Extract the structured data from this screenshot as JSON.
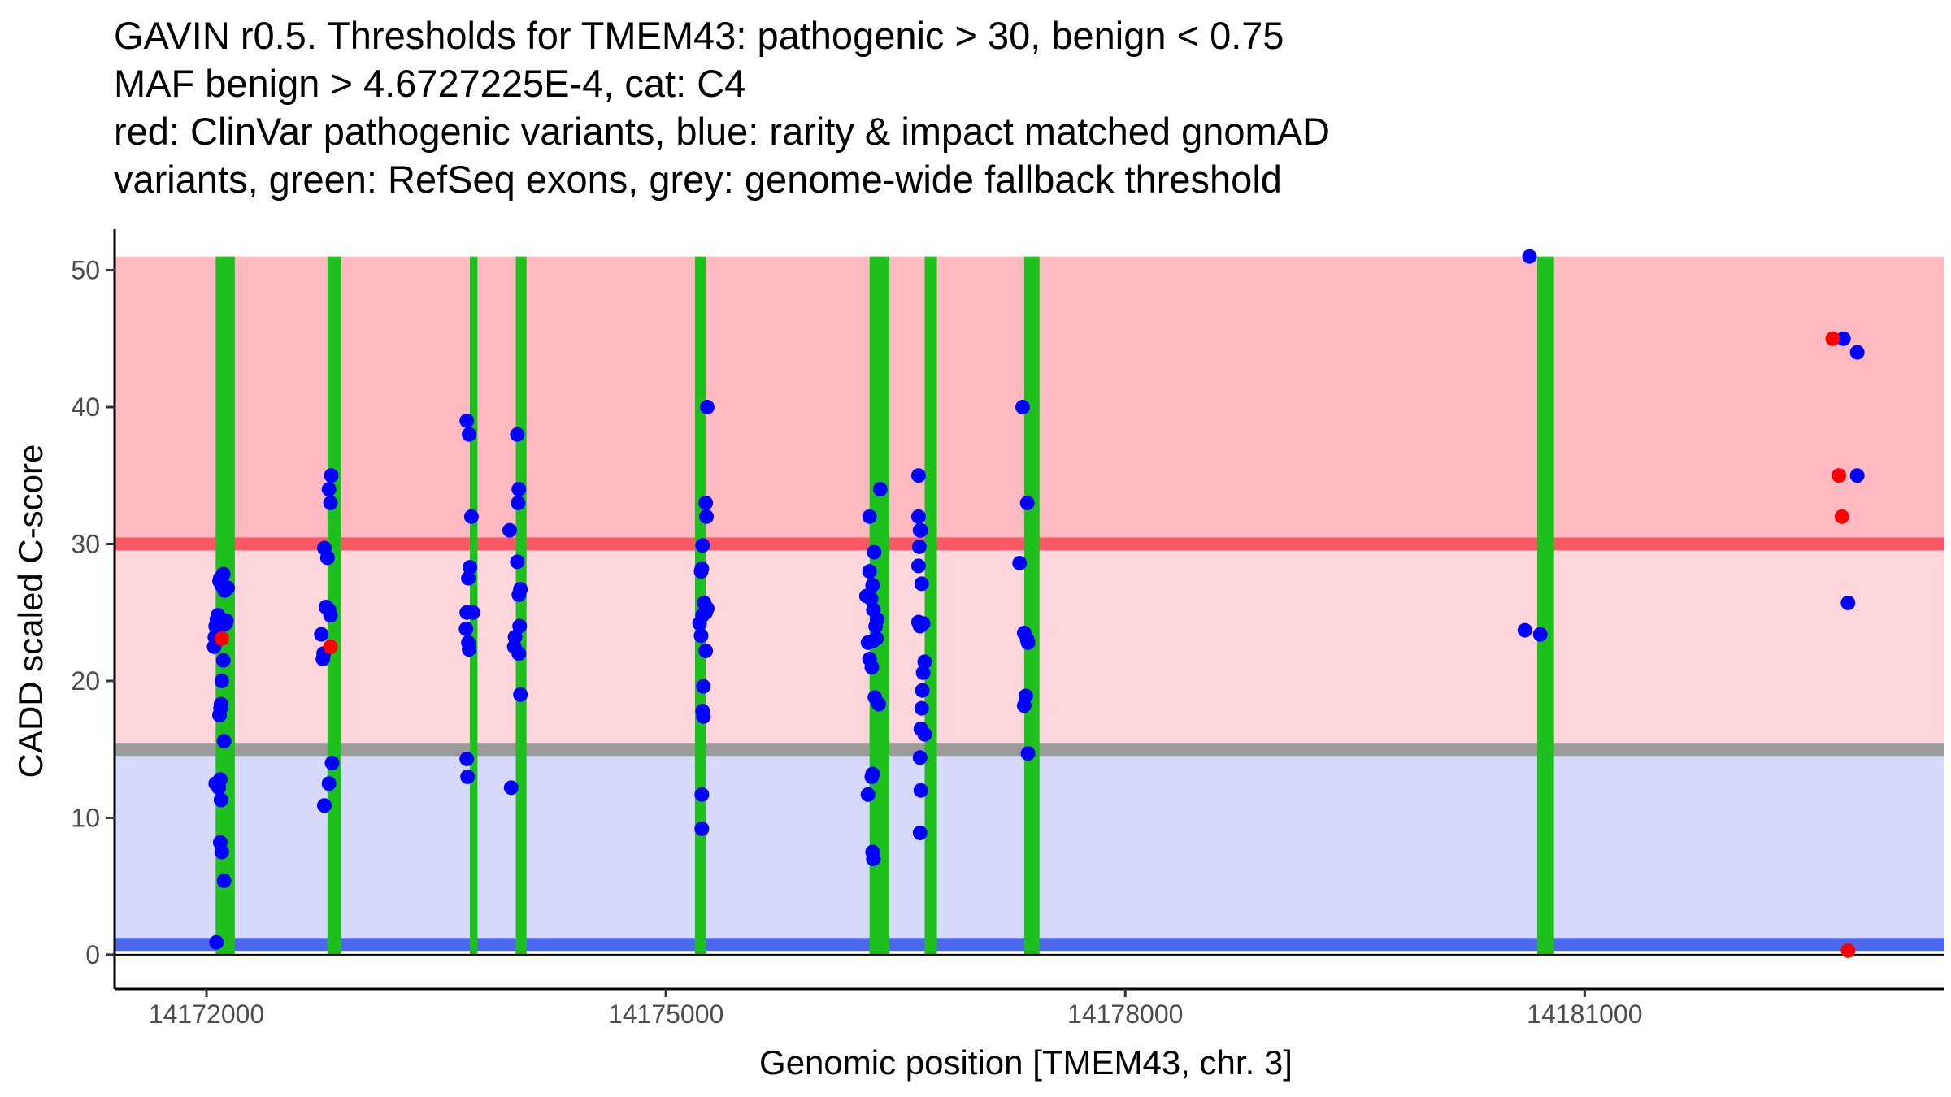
{
  "chart_data": {
    "type": "scatter",
    "title_lines": [
      "GAVIN r0.5. Thresholds for TMEM43: pathogenic > 30, benign < 0.75",
      "MAF benign > 4.6727225E-4, cat: C4",
      "red: ClinVar pathogenic variants, blue: rarity & impact matched gnomAD",
      "variants, green: RefSeq exons, grey: genome-wide fallback threshold"
    ],
    "xlabel": "Genomic position [TMEM43, chr. 3]",
    "ylabel": "CADD scaled C-score",
    "xlim": [
      14171400,
      14183350
    ],
    "ylim": [
      -2.5,
      53
    ],
    "x_ticks": [
      14172000,
      14175000,
      14178000,
      14181000
    ],
    "x_tick_labels": [
      "14172000",
      "14175000",
      "14178000",
      "14181000"
    ],
    "y_ticks": [
      0,
      10,
      20,
      30,
      40,
      50
    ],
    "y_tick_labels": [
      "0",
      "10",
      "20",
      "30",
      "40",
      "50"
    ],
    "colors": {
      "pathogenic_band": "#fdbbc1",
      "mid_band": "#fed6dc",
      "benign_band": "#d7d9fb",
      "pathogenic_threshold": "#fe5766",
      "fallback_threshold": "#9b9b9b",
      "benign_threshold": "#4c68ee",
      "exon": "#1ec01e",
      "clinvar_point": "#fe0000",
      "gnomad_point": "#0000fe"
    },
    "bands": [
      {
        "name": "pathogenic",
        "y0": 30,
        "y1": 51
      },
      {
        "name": "uncertain",
        "y0": 15,
        "y1": 30
      },
      {
        "name": "benign",
        "y0": 0.75,
        "y1": 15
      }
    ],
    "thresholds": {
      "pathogenic": 30,
      "fallback": 15,
      "benign": 0.75
    },
    "exons": [
      {
        "start": 14172060,
        "end": 14172185
      },
      {
        "start": 14172790,
        "end": 14172880
      },
      {
        "start": 14173720,
        "end": 14173770
      },
      {
        "start": 14174020,
        "end": 14174090
      },
      {
        "start": 14175190,
        "end": 14175260
      },
      {
        "start": 14176330,
        "end": 14176460
      },
      {
        "start": 14176690,
        "end": 14176770
      },
      {
        "start": 14177340,
        "end": 14177440
      },
      {
        "start": 14180690,
        "end": 14180800
      }
    ],
    "series": [
      {
        "name": "gnomAD",
        "points": [
          [
            14172050,
            22.5
          ],
          [
            14172055,
            23.2
          ],
          [
            14172060,
            24.0
          ],
          [
            14172068,
            24.5
          ],
          [
            14172075,
            24.8
          ],
          [
            14172080,
            23.8
          ],
          [
            14172085,
            27.3
          ],
          [
            14172090,
            27.5
          ],
          [
            14172098,
            27.0
          ],
          [
            14172110,
            27.8
          ],
          [
            14172118,
            26.6
          ],
          [
            14172125,
            24.2
          ],
          [
            14172130,
            24.4
          ],
          [
            14172138,
            26.8
          ],
          [
            14172110,
            21.5
          ],
          [
            14172100,
            20.0
          ],
          [
            14172092,
            18.0
          ],
          [
            14172085,
            17.5
          ],
          [
            14172095,
            18.3
          ],
          [
            14172115,
            15.6
          ],
          [
            14172090,
            12.8
          ],
          [
            14172080,
            12.2
          ],
          [
            14172060,
            12.5
          ],
          [
            14172072,
            12.5
          ],
          [
            14172095,
            11.3
          ],
          [
            14172090,
            8.2
          ],
          [
            14172100,
            7.5
          ],
          [
            14172115,
            5.4
          ],
          [
            14172065,
            0.9
          ],
          [
            14172750,
            23.4
          ],
          [
            14172760,
            21.6
          ],
          [
            14172765,
            22.0
          ],
          [
            14172770,
            29.7
          ],
          [
            14172790,
            29.0
          ],
          [
            14172780,
            25.4
          ],
          [
            14172800,
            25.2
          ],
          [
            14172810,
            24.8
          ],
          [
            14172800,
            34.0
          ],
          [
            14172810,
            33.0
          ],
          [
            14172815,
            35.0
          ],
          [
            14172820,
            14.0
          ],
          [
            14172800,
            12.5
          ],
          [
            14172770,
            10.9
          ],
          [
            14173700,
            39.0
          ],
          [
            14173715,
            38.0
          ],
          [
            14173730,
            32.0
          ],
          [
            14173720,
            28.3
          ],
          [
            14173710,
            27.5
          ],
          [
            14173700,
            25.0
          ],
          [
            14173740,
            25.0
          ],
          [
            14173695,
            23.8
          ],
          [
            14173710,
            22.8
          ],
          [
            14173715,
            22.3
          ],
          [
            14173700,
            14.3
          ],
          [
            14173705,
            13.0
          ],
          [
            14173980,
            31.0
          ],
          [
            14174030,
            38.0
          ],
          [
            14174040,
            34.0
          ],
          [
            14174035,
            33.0
          ],
          [
            14174030,
            28.7
          ],
          [
            14174050,
            26.7
          ],
          [
            14174040,
            26.3
          ],
          [
            14174045,
            24.0
          ],
          [
            14174015,
            23.2
          ],
          [
            14174010,
            22.5
          ],
          [
            14174040,
            22.0
          ],
          [
            14174050,
            19.0
          ],
          [
            14173990,
            12.2
          ],
          [
            14175270,
            40.0
          ],
          [
            14175260,
            33.0
          ],
          [
            14175265,
            32.0
          ],
          [
            14175240,
            29.9
          ],
          [
            14175235,
            28.2
          ],
          [
            14175230,
            28.0
          ],
          [
            14175250,
            25.7
          ],
          [
            14175260,
            25.0
          ],
          [
            14175270,
            25.3
          ],
          [
            14175240,
            24.8
          ],
          [
            14175220,
            24.2
          ],
          [
            14175230,
            23.3
          ],
          [
            14175260,
            22.2
          ],
          [
            14175245,
            19.6
          ],
          [
            14175240,
            17.8
          ],
          [
            14175245,
            17.4
          ],
          [
            14175235,
            11.7
          ],
          [
            14175235,
            9.2
          ],
          [
            14176330,
            32.0
          ],
          [
            14176360,
            29.4
          ],
          [
            14176330,
            28.0
          ],
          [
            14176350,
            27.0
          ],
          [
            14176310,
            26.2
          ],
          [
            14176380,
            24.5
          ],
          [
            14176370,
            24.0
          ],
          [
            14176355,
            25.2
          ],
          [
            14176340,
            26.0
          ],
          [
            14176320,
            22.8
          ],
          [
            14176350,
            22.9
          ],
          [
            14176375,
            23.1
          ],
          [
            14176330,
            21.6
          ],
          [
            14176345,
            21.0
          ],
          [
            14176365,
            18.8
          ],
          [
            14176390,
            18.3
          ],
          [
            14176350,
            13.2
          ],
          [
            14176345,
            13.0
          ],
          [
            14176320,
            11.7
          ],
          [
            14176350,
            7.5
          ],
          [
            14176355,
            7.0
          ],
          [
            14176400,
            34.0
          ],
          [
            14176650,
            35.0
          ],
          [
            14176650,
            32.0
          ],
          [
            14176660,
            31.0
          ],
          [
            14176665,
            31.0
          ],
          [
            14176655,
            29.8
          ],
          [
            14176650,
            28.4
          ],
          [
            14176670,
            27.1
          ],
          [
            14176650,
            24.3
          ],
          [
            14176660,
            24.0
          ],
          [
            14176680,
            24.2
          ],
          [
            14176690,
            21.4
          ],
          [
            14176680,
            20.6
          ],
          [
            14176675,
            19.3
          ],
          [
            14176670,
            18.0
          ],
          [
            14176665,
            16.5
          ],
          [
            14176690,
            16.1
          ],
          [
            14176660,
            14.4
          ],
          [
            14176665,
            12.0
          ],
          [
            14176660,
            8.9
          ],
          [
            14177310,
            28.6
          ],
          [
            14177330,
            40.0
          ],
          [
            14177360,
            33.0
          ],
          [
            14177340,
            23.5
          ],
          [
            14177360,
            23.0
          ],
          [
            14177365,
            22.8
          ],
          [
            14177350,
            18.9
          ],
          [
            14177340,
            18.2
          ],
          [
            14177365,
            14.7
          ],
          [
            14180640,
            51.0
          ],
          [
            14180610,
            23.7
          ],
          [
            14180710,
            23.4
          ],
          [
            14182690,
            45.0
          ],
          [
            14182780,
            44.0
          ],
          [
            14182780,
            35.0
          ],
          [
            14182720,
            25.7
          ]
        ]
      },
      {
        "name": "ClinVar",
        "points": [
          [
            14172100,
            23.1
          ],
          [
            14172810,
            22.5
          ],
          [
            14182620,
            45.0
          ],
          [
            14182660,
            35.0
          ],
          [
            14182680,
            32.0
          ],
          [
            14182720,
            0.3
          ]
        ]
      }
    ]
  }
}
